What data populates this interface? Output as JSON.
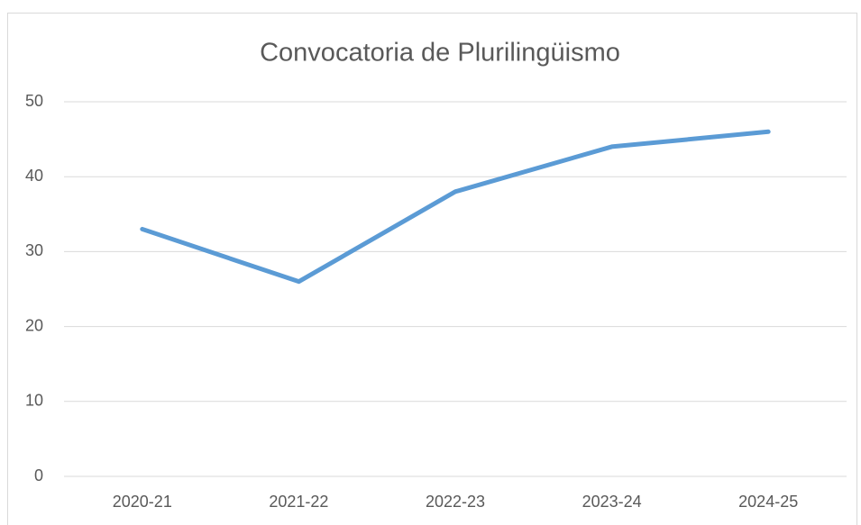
{
  "chart_data": {
    "type": "line",
    "title": "Convocatoria de Plurilingüismo",
    "categories": [
      "2020-21",
      "2021-22",
      "2022-23",
      "2023-24",
      "2024-25"
    ],
    "series": [
      {
        "name": "Convocatoria de Plurilingüismo",
        "color": "#5b9bd5",
        "values": [
          33,
          26,
          38,
          44,
          46
        ]
      }
    ],
    "ylim": [
      0,
      50
    ],
    "yticks": [
      0,
      10,
      20,
      30,
      40,
      50
    ],
    "grid": true
  }
}
